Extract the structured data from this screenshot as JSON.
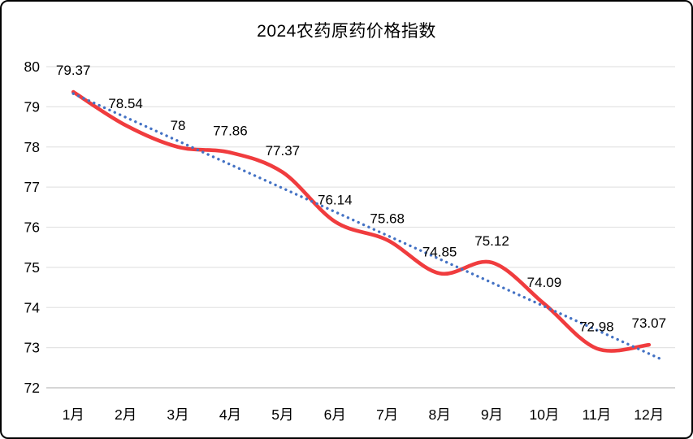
{
  "chart_data": {
    "type": "line",
    "title": "2024农药原药价格指数",
    "categories": [
      "1月",
      "2月",
      "3月",
      "4月",
      "5月",
      "6月",
      "7月",
      "8月",
      "9月",
      "10月",
      "11月",
      "12月"
    ],
    "series": [
      {
        "name": "2024农药原药价格指数",
        "values": [
          79.37,
          78.54,
          78,
          77.86,
          77.37,
          76.14,
          75.68,
          74.85,
          75.12,
          74.09,
          72.98,
          73.07
        ],
        "labels": [
          "79.37",
          "78.54",
          "78",
          "77.86",
          "77.37",
          "76.14",
          "75.68",
          "74.85",
          "75.12",
          "74.09",
          "72.98",
          "73.07"
        ],
        "color": "#f03c3e",
        "line_style": "smooth",
        "markers": false
      }
    ],
    "trendline": {
      "type": "linear",
      "color": "#4472c4",
      "dash": "dotted"
    },
    "xlabel": "",
    "ylabel": "",
    "ylim": [
      72,
      80
    ],
    "yticks": [
      80,
      79,
      78,
      77,
      76,
      75,
      74,
      73,
      72
    ],
    "grid": true,
    "legend": "none",
    "colors": {
      "gridline": "#e4e4e4",
      "axis_line": "#c8c8c8",
      "label_text": "#000000",
      "background": "#ffffff",
      "frame_border": "#000000"
    }
  }
}
